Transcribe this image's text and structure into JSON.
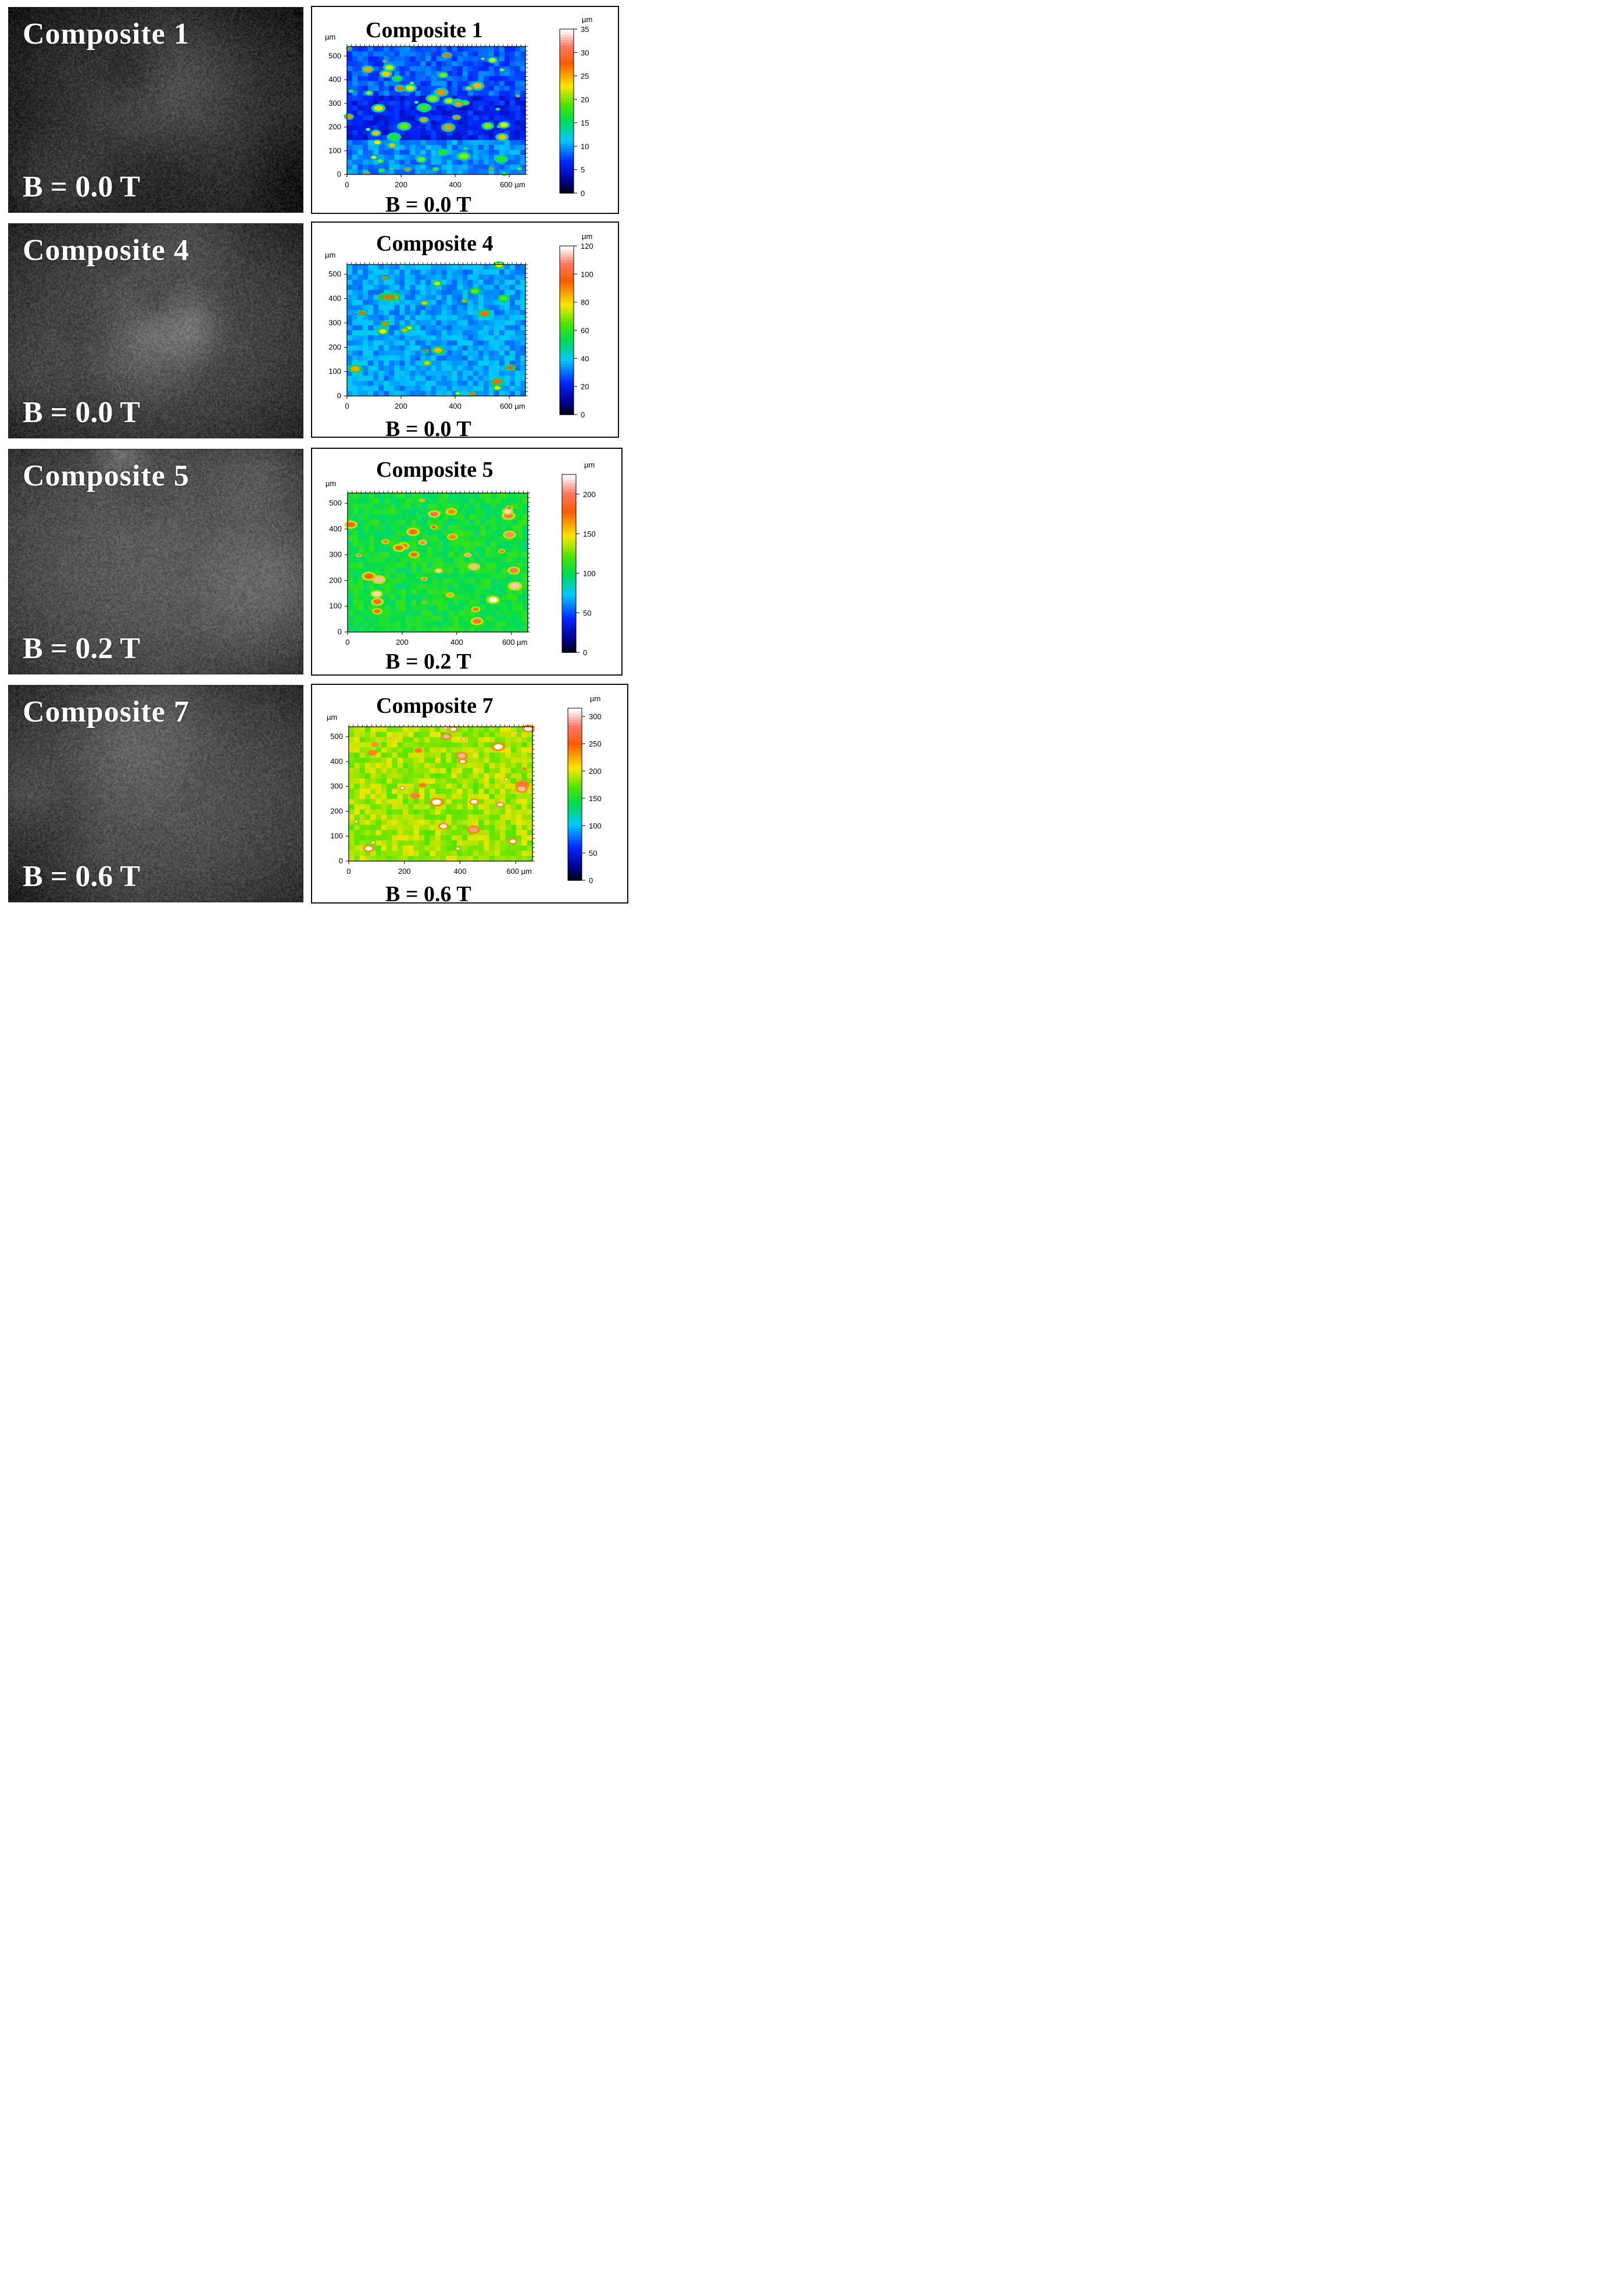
{
  "rows": [
    {
      "photo": {
        "title": "Composite 1",
        "field": "B = 0.0 T"
      },
      "map": {
        "title": "Composite 1",
        "field": "B = 0.0 T",
        "y_unit": "µm",
        "y_ticks": [
          "0",
          "100",
          "200",
          "300",
          "400",
          "500"
        ],
        "x_ticks": [
          "0",
          "200",
          "400",
          "600 µm"
        ],
        "cbar_unit": "µm",
        "cbar_ticks": [
          "0",
          "5",
          "10",
          "15",
          "20",
          "25",
          "30",
          "35"
        ],
        "cbar_max": 35
      }
    },
    {
      "photo": {
        "title": "Composite 4",
        "field": "B = 0.0 T"
      },
      "map": {
        "title": "Composite 4",
        "field": "B = 0.0 T",
        "y_unit": "µm",
        "y_ticks": [
          "0",
          "100",
          "200",
          "300",
          "400",
          "500"
        ],
        "x_ticks": [
          "0",
          "200",
          "400",
          "600 µm"
        ],
        "cbar_unit": "µm",
        "cbar_ticks": [
          "0",
          "20",
          "40",
          "60",
          "80",
          "100",
          "120"
        ],
        "cbar_max": 120
      }
    },
    {
      "photo": {
        "title": "Composite 5",
        "field": "B = 0.2 T"
      },
      "map": {
        "title": "Composite 5",
        "field": "B = 0.2 T",
        "y_unit": "µm",
        "y_ticks": [
          "0",
          "100",
          "200",
          "300",
          "400",
          "500"
        ],
        "x_ticks": [
          "0",
          "200",
          "400",
          "600 µm"
        ],
        "cbar_unit": "µm",
        "cbar_ticks": [
          "0",
          "50",
          "100",
          "150",
          "200"
        ],
        "cbar_max": 225
      }
    },
    {
      "photo": {
        "title": "Composite 7",
        "field": "B = 0.6 T"
      },
      "map": {
        "title": "Composite 7",
        "field": "B = 0.6 T",
        "y_unit": "µm",
        "y_ticks": [
          "0",
          "100",
          "200",
          "300",
          "400",
          "500"
        ],
        "x_ticks": [
          "0",
          "200",
          "400",
          "600 µm"
        ],
        "cbar_unit": "µm",
        "cbar_ticks": [
          "0",
          "50",
          "100",
          "150",
          "200",
          "250",
          "300"
        ],
        "cbar_max": 315
      }
    }
  ]
}
